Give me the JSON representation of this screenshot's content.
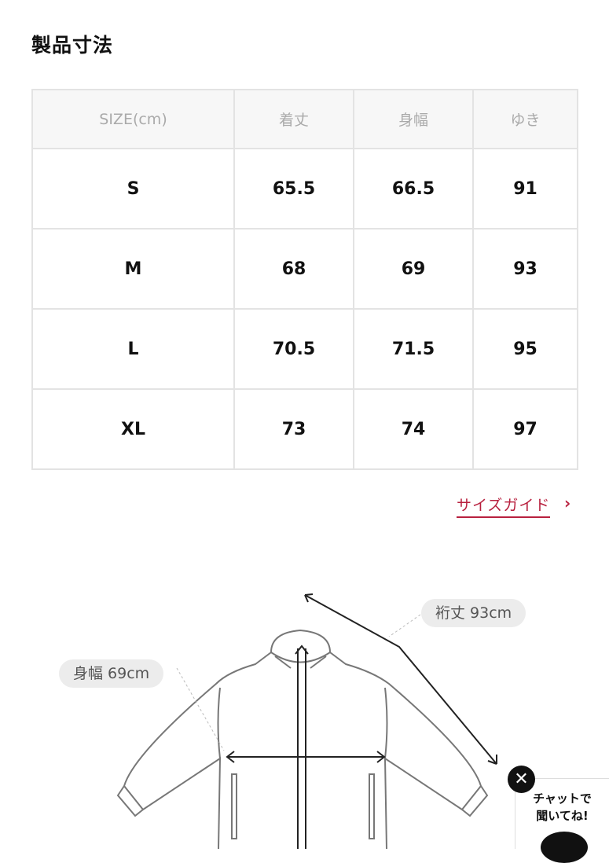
{
  "title": "製品寸法",
  "table": {
    "headers": [
      "SIZE(cm)",
      "着丈",
      "身幅",
      "ゆき"
    ],
    "rows": [
      [
        "S",
        "65.5",
        "66.5",
        "91"
      ],
      [
        "M",
        "68",
        "69",
        "93"
      ],
      [
        "L",
        "70.5",
        "71.5",
        "95"
      ],
      [
        "XL",
        "73",
        "74",
        "97"
      ]
    ]
  },
  "size_guide": {
    "label": "サイズガイド",
    "chevron": "›"
  },
  "diagram": {
    "sleeve_label": "裄丈 93cm",
    "width_label": "身幅 69cm"
  },
  "chat": {
    "close": "✕",
    "line1": "チャットで",
    "line2": "聞いてね!"
  },
  "colors": {
    "accent": "#b8203e"
  }
}
